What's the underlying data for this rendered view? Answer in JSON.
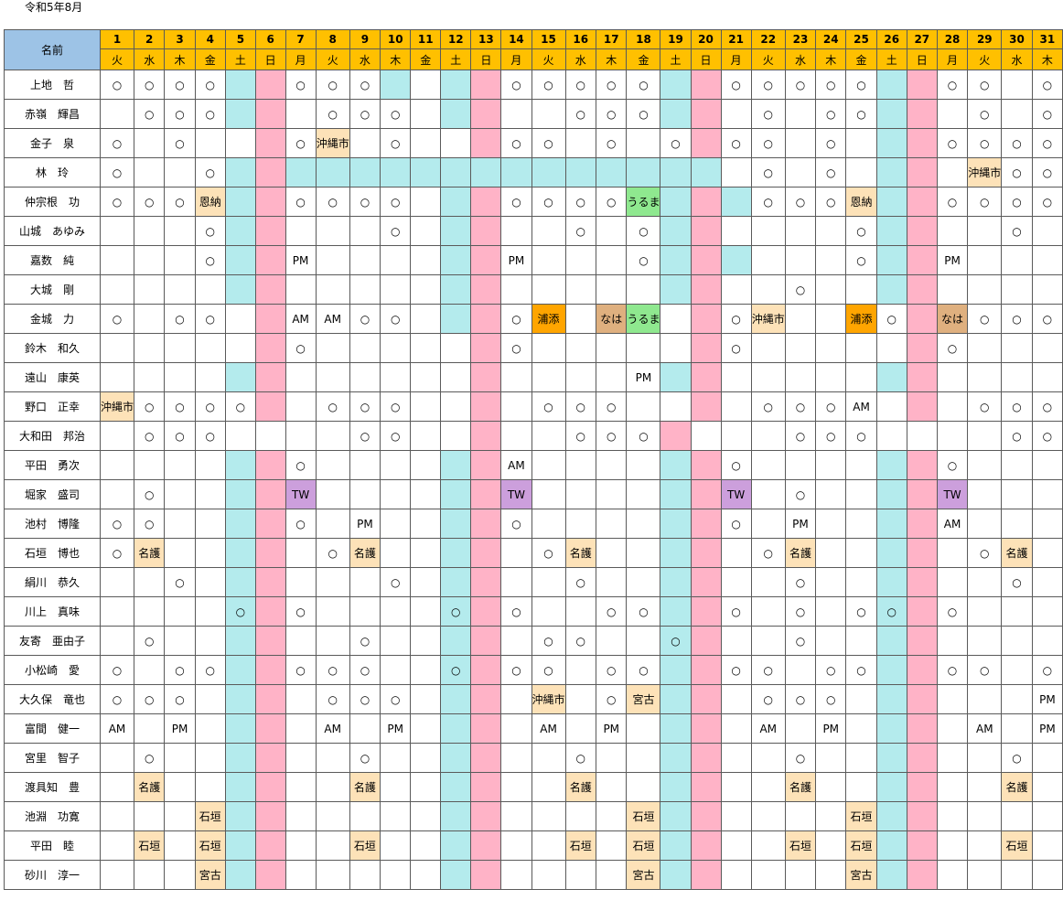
{
  "sheet": {
    "title": "令和5年8月",
    "name_header": "名前"
  },
  "days": [
    {
      "d": "1",
      "w": "火"
    },
    {
      "d": "2",
      "w": "水"
    },
    {
      "d": "3",
      "w": "木"
    },
    {
      "d": "4",
      "w": "金"
    },
    {
      "d": "5",
      "w": "土"
    },
    {
      "d": "6",
      "w": "日"
    },
    {
      "d": "7",
      "w": "月"
    },
    {
      "d": "8",
      "w": "火"
    },
    {
      "d": "9",
      "w": "水"
    },
    {
      "d": "10",
      "w": "木"
    },
    {
      "d": "11",
      "w": "金"
    },
    {
      "d": "12",
      "w": "土"
    },
    {
      "d": "13",
      "w": "日"
    },
    {
      "d": "14",
      "w": "月"
    },
    {
      "d": "15",
      "w": "火"
    },
    {
      "d": "16",
      "w": "水"
    },
    {
      "d": "17",
      "w": "木"
    },
    {
      "d": "18",
      "w": "金"
    },
    {
      "d": "19",
      "w": "土"
    },
    {
      "d": "20",
      "w": "日"
    },
    {
      "d": "21",
      "w": "月"
    },
    {
      "d": "22",
      "w": "火"
    },
    {
      "d": "23",
      "w": "水"
    },
    {
      "d": "24",
      "w": "木"
    },
    {
      "d": "25",
      "w": "金"
    },
    {
      "d": "26",
      "w": "土"
    },
    {
      "d": "27",
      "w": "日"
    },
    {
      "d": "28",
      "w": "月"
    },
    {
      "d": "29",
      "w": "火"
    },
    {
      "d": "30",
      "w": "水"
    },
    {
      "d": "31",
      "w": "木"
    }
  ],
  "colors": {
    "name_header_bg": "#9dc3e6",
    "day_header_bg": "#ffc000",
    "weekend_sat_bg": "#b4ebed",
    "weekend_sun_bg": "#ffb3c7",
    "label_urasoe_bg": "#ffa500",
    "label_uruma_bg": "#8fe88f",
    "label_beige_bg": "#fde2b8",
    "label_naha_bg": "#dfb07f",
    "label_tw_bg": "#cc9fdc"
  },
  "rows": [
    {
      "name": "上地　哲",
      "cells": {
        "1": "○",
        "2": "○",
        "3": "○",
        "4": "○",
        "7": "○",
        "8": "○",
        "9": "○",
        "10": [
          "",
          "cyan"
        ],
        "14": "○",
        "15": "○",
        "16": "○",
        "17": "○",
        "18": "○",
        "21": "○",
        "22": "○",
        "23": "○",
        "24": "○",
        "25": "○",
        "28": "○",
        "29": "○",
        "31": "○"
      }
    },
    {
      "name": "赤嶺　輝昌",
      "cells": {
        "2": "○",
        "3": "○",
        "4": "○",
        "8": "○",
        "9": "○",
        "10": "○",
        "16": "○",
        "17": "○",
        "18": "○",
        "22": "○",
        "24": "○",
        "25": "○",
        "29": "○",
        "31": "○"
      }
    },
    {
      "name": "金子　泉",
      "cells": {
        "1": "○",
        "3": "○",
        "5": [
          "",
          "white"
        ],
        "7": "○",
        "8": [
          "沖縄市",
          "beige",
          "sm"
        ],
        "10": "○",
        "12": [
          "",
          "white"
        ],
        "14": "○",
        "15": "○",
        "17": "○",
        "19": [
          "○",
          "white"
        ],
        "21": "○",
        "22": "○",
        "24": "○",
        "28": "○",
        "29": "○",
        "30": "○",
        "31": "○"
      }
    },
    {
      "name": "林　玲",
      "cells": {
        "1": "○",
        "4": "○",
        "7": [
          "",
          "cyan"
        ],
        "8": [
          "",
          "cyan"
        ],
        "9": [
          "",
          "cyan"
        ],
        "10": [
          "",
          "cyan"
        ],
        "11": [
          "",
          "cyan"
        ],
        "13": [
          "",
          "cyan"
        ],
        "14": [
          "",
          "cyan"
        ],
        "15": [
          "",
          "cyan"
        ],
        "16": [
          "",
          "cyan"
        ],
        "17": [
          "",
          "cyan"
        ],
        "18": [
          "",
          "cyan"
        ],
        "20": [
          "",
          "cyan"
        ],
        "22": "○",
        "24": "○",
        "29": [
          "沖縄市",
          "beige",
          "sm"
        ],
        "30": "○",
        "31": "○"
      }
    },
    {
      "name": "仲宗根　功",
      "cells": {
        "1": "○",
        "2": "○",
        "3": "○",
        "4": [
          "恩納",
          "beige"
        ],
        "7": "○",
        "8": "○",
        "9": "○",
        "10": "○",
        "14": "○",
        "15": "○",
        "16": "○",
        "17": "○",
        "18": [
          "うるま",
          "grn"
        ],
        "21": [
          "",
          "cyan"
        ],
        "22": "○",
        "23": "○",
        "24": "○",
        "25": [
          "恩納",
          "beige"
        ],
        "28": "○",
        "29": "○",
        "30": "○",
        "31": "○"
      }
    },
    {
      "name": "山城　あゆみ",
      "cells": {
        "4": "○",
        "10": "○",
        "16": "○",
        "18": "○",
        "25": "○",
        "30": "○"
      }
    },
    {
      "name": "嘉数　純",
      "cells": {
        "4": "○",
        "7": "PM",
        "14": "PM",
        "18": "○",
        "21": [
          "",
          "cyan"
        ],
        "25": "○",
        "28": "PM"
      }
    },
    {
      "name": "大城　剛",
      "cells": {
        "23": "○"
      }
    },
    {
      "name": "金城　力",
      "cells": {
        "1": "○",
        "3": "○",
        "4": "○",
        "5": [
          "",
          "white"
        ],
        "7": "AM",
        "8": "AM",
        "9": "○",
        "10": "○",
        "14": "○",
        "15": [
          "浦添",
          "org"
        ],
        "17": [
          "なは",
          "tan"
        ],
        "18": [
          "うるま",
          "grn"
        ],
        "19": [
          "",
          "white"
        ],
        "21": "○",
        "22": [
          "沖縄市",
          "beige",
          "sm"
        ],
        "25": [
          "浦添",
          "org"
        ],
        "26": [
          "○",
          "white"
        ],
        "28": [
          "なは",
          "tan"
        ],
        "29": "○",
        "30": "○",
        "31": "○"
      }
    },
    {
      "name": "鈴木　和久",
      "cells": {
        "5": [
          "",
          "white"
        ],
        "7": "○",
        "12": [
          "",
          "white"
        ],
        "14": "○",
        "19": [
          "",
          "white"
        ],
        "21": "○",
        "26": [
          "",
          "white"
        ],
        "28": "○"
      }
    },
    {
      "name": "遠山　康英",
      "cells": {
        "12": [
          "",
          "white"
        ],
        "18": "PM"
      }
    },
    {
      "name": "野口　正幸",
      "cells": {
        "1": [
          "沖縄市",
          "beige",
          "sm"
        ],
        "2": "○",
        "3": "○",
        "4": "○",
        "5": [
          "○",
          "white"
        ],
        "8": "○",
        "9": "○",
        "10": "○",
        "12": [
          "",
          "white"
        ],
        "15": "○",
        "16": "○",
        "17": "○",
        "19": [
          "",
          "white"
        ],
        "22": "○",
        "23": "○",
        "24": "○",
        "25": "AM",
        "26": [
          "",
          "white"
        ],
        "29": "○",
        "30": "○",
        "31": "○"
      }
    },
    {
      "name": "大和田　邦治",
      "cells": {
        "2": "○",
        "3": "○",
        "4": "○",
        "5": [
          "",
          "white"
        ],
        "6": [
          "",
          "white"
        ],
        "9": "○",
        "10": "○",
        "12": [
          "",
          "white"
        ],
        "16": "○",
        "17": "○",
        "18": "○",
        "19": [
          "",
          "pink"
        ],
        "20": [
          "",
          "white"
        ],
        "23": "○",
        "24": "○",
        "25": "○",
        "26": [
          "",
          "white"
        ],
        "27": [
          "",
          "white"
        ],
        "30": "○",
        "31": "○"
      }
    },
    {
      "name": "平田　勇次",
      "cells": {
        "7": "○",
        "14": "AM",
        "21": "○",
        "28": "○"
      }
    },
    {
      "name": "堀家　盛司",
      "cells": {
        "2": "○",
        "7": [
          "TW",
          "pur"
        ],
        "14": [
          "TW",
          "pur"
        ],
        "21": [
          "TW",
          "pur"
        ],
        "23": "○",
        "28": [
          "TW",
          "pur"
        ]
      }
    },
    {
      "name": "池村　博隆",
      "cells": {
        "1": "○",
        "2": "○",
        "7": "○",
        "9": "PM",
        "14": "○",
        "21": "○",
        "23": "PM",
        "28": "AM"
      }
    },
    {
      "name": "石垣　博也",
      "cells": {
        "1": "○",
        "2": [
          "名護",
          "beige"
        ],
        "8": "○",
        "9": [
          "名護",
          "beige"
        ],
        "15": "○",
        "16": [
          "名護",
          "beige"
        ],
        "22": "○",
        "23": [
          "名護",
          "beige"
        ],
        "29": "○",
        "30": [
          "名護",
          "beige"
        ]
      }
    },
    {
      "name": "絹川　恭久",
      "cells": {
        "3": "○",
        "10": "○",
        "16": "○",
        "23": "○",
        "30": "○"
      }
    },
    {
      "name": "川上　真味",
      "cells": {
        "5": "○",
        "7": "○",
        "12": "○",
        "14": "○",
        "17": "○",
        "18": "○",
        "21": "○",
        "23": "○",
        "25": "○",
        "26": "○",
        "28": "○"
      }
    },
    {
      "name": "友寄　亜由子",
      "cells": {
        "2": "○",
        "9": "○",
        "15": "○",
        "16": "○",
        "19": "○",
        "23": "○"
      }
    },
    {
      "name": "小松崎　愛",
      "cells": {
        "1": "○",
        "3": "○",
        "4": "○",
        "7": "○",
        "8": "○",
        "9": "○",
        "12": "○",
        "14": "○",
        "15": "○",
        "17": "○",
        "18": "○",
        "21": "○",
        "22": "○",
        "24": "○",
        "25": "○",
        "28": "○",
        "29": "○",
        "31": "○"
      }
    },
    {
      "name": "大久保　竜也",
      "cells": {
        "1": "○",
        "2": "○",
        "3": "○",
        "8": "○",
        "9": "○",
        "10": "○",
        "15": [
          "沖縄市",
          "beige",
          "sm"
        ],
        "17": "○",
        "18": [
          "宮古",
          "beige"
        ],
        "22": "○",
        "23": "○",
        "24": "○",
        "31": "PM"
      }
    },
    {
      "name": "富間　健一",
      "cells": {
        "1": "AM",
        "3": "PM",
        "8": "AM",
        "10": "PM",
        "15": "AM",
        "17": "PM",
        "22": "AM",
        "24": "PM",
        "29": "AM",
        "31": "PM"
      }
    },
    {
      "name": "宮里　智子",
      "cells": {
        "2": "○",
        "9": "○",
        "16": "○",
        "23": "○",
        "30": "○"
      }
    },
    {
      "name": "渡具知　豊",
      "cells": {
        "2": [
          "名護",
          "beige"
        ],
        "9": [
          "名護",
          "beige"
        ],
        "16": [
          "名護",
          "beige"
        ],
        "23": [
          "名護",
          "beige"
        ],
        "30": [
          "名護",
          "beige"
        ]
      }
    },
    {
      "name": "池淵　功寛",
      "cells": {
        "4": [
          "石垣",
          "beige"
        ],
        "18": [
          "石垣",
          "beige"
        ],
        "25": [
          "石垣",
          "beige"
        ]
      }
    },
    {
      "name": "平田　睦",
      "cells": {
        "2": [
          "石垣",
          "beige"
        ],
        "4": [
          "石垣",
          "beige"
        ],
        "9": [
          "石垣",
          "beige"
        ],
        "16": [
          "石垣",
          "beige"
        ],
        "18": [
          "石垣",
          "beige"
        ],
        "23": [
          "石垣",
          "beige"
        ],
        "25": [
          "石垣",
          "beige"
        ],
        "30": [
          "石垣",
          "beige"
        ]
      }
    },
    {
      "name": "砂川　淳一",
      "cells": {
        "4": [
          "宮古",
          "beige"
        ],
        "18": [
          "宮古",
          "beige"
        ],
        "25": [
          "宮古",
          "beige"
        ]
      }
    }
  ]
}
